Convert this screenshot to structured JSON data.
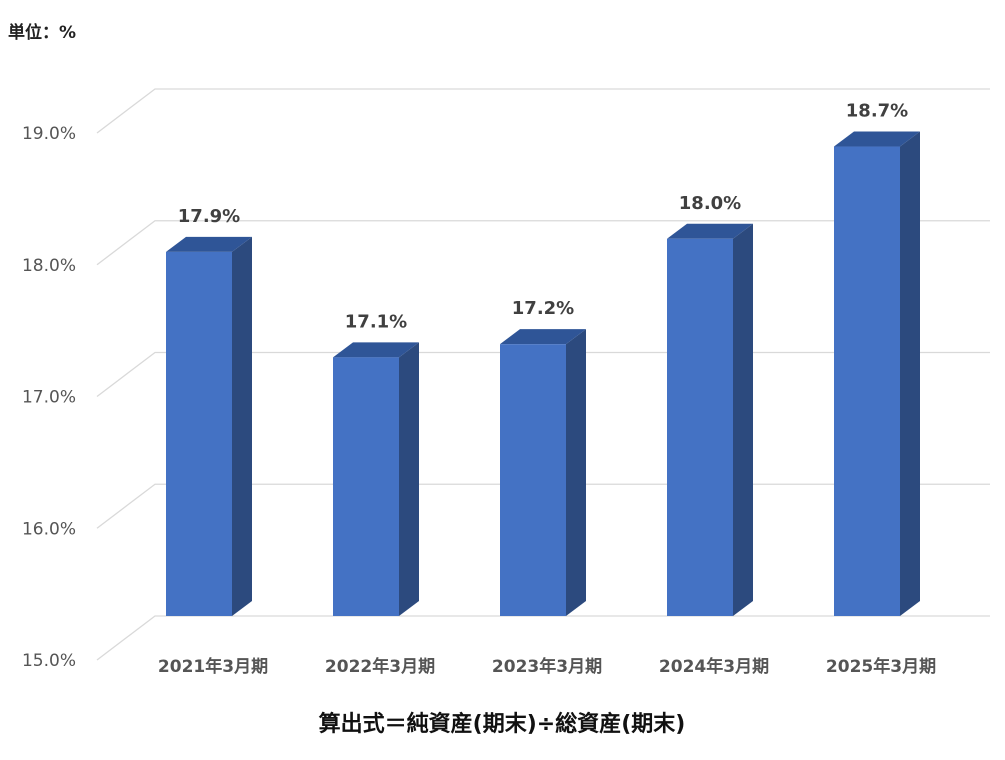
{
  "chart_data": {
    "type": "bar",
    "unit_label": "単位：%",
    "categories": [
      "2021年3月期",
      "2022年3月期",
      "2023年3月期",
      "2024年3月期",
      "2025年3月期"
    ],
    "values": [
      17.9,
      17.1,
      17.2,
      18.0,
      18.7
    ],
    "data_labels": [
      "17.9%",
      "17.1%",
      "17.2%",
      "18.0%",
      "18.7%"
    ],
    "y_ticks": [
      15.0,
      16.0,
      17.0,
      18.0,
      19.0
    ],
    "y_tick_labels": [
      "15.0%",
      "16.0%",
      "17.0%",
      "18.0%",
      "19.0%"
    ],
    "ylim": [
      15.0,
      19.0
    ],
    "grid": true,
    "style": "3d-column",
    "colors": {
      "front": "#4472c4",
      "side": "#2c4a7e",
      "top": "#2f5597"
    }
  },
  "footer": {
    "formula": "算出式＝純資産(期末)÷総資産(期末)"
  }
}
